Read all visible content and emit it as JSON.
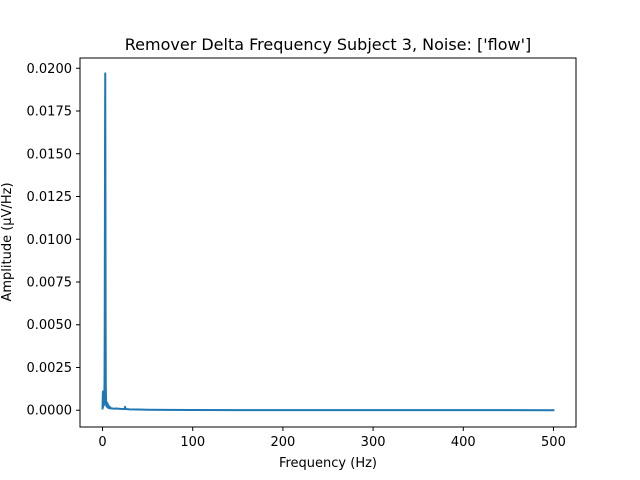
{
  "chart_data": {
    "type": "line",
    "title": "Remover Delta Frequency Subject 3, Noise: ['flow']",
    "xlabel": "Frequency (Hz)",
    "ylabel": "Amplitude (μV/Hz)",
    "xlim": [
      -25,
      525
    ],
    "ylim": [
      -0.00098,
      0.0206
    ],
    "x_ticks": [
      0,
      100,
      200,
      300,
      400,
      500
    ],
    "y_ticks": [
      0.0,
      0.0025,
      0.005,
      0.0075,
      0.01,
      0.0125,
      0.015,
      0.0175,
      0.02
    ],
    "x_tick_labels": [
      "0",
      "100",
      "200",
      "300",
      "400",
      "500"
    ],
    "y_tick_labels": [
      "0.0000",
      "0.0025",
      "0.0050",
      "0.0075",
      "0.0100",
      "0.0125",
      "0.0150",
      "0.0175",
      "0.0200"
    ],
    "grid": false,
    "legend": "none",
    "series": [
      {
        "color": "#1f77b4",
        "x": [
          0,
          0.3,
          0.5,
          0.7,
          1.0,
          1.3,
          1.6,
          2.0,
          2.2,
          2.4,
          2.6,
          2.8,
          3.0,
          3.2,
          3.4,
          3.6,
          3.9,
          4.2,
          4.5,
          5.0,
          5.5,
          6.0,
          6.5,
          7.0,
          8.0,
          9.0,
          10.0,
          12.0,
          15.0,
          20.0,
          24.5,
          25.0,
          25.5,
          30.0,
          40.0,
          50.0,
          70.0,
          100.0,
          150.0,
          200.0,
          300.0,
          400.0,
          500.0
        ],
        "y": [
          0.0001,
          0.0009,
          0.0011,
          0.0002,
          0.0005,
          0.0009,
          0.0003,
          0.0006,
          0.0017,
          0.0045,
          0.0105,
          0.0165,
          0.0197,
          0.013,
          0.0055,
          0.0015,
          0.0004,
          0.00025,
          0.0005,
          0.0002,
          0.0004,
          0.00015,
          0.0003,
          0.00012,
          0.0002,
          0.0001,
          0.00012,
          9e-05,
          0.0001,
          8e-05,
          7e-05,
          0.0002,
          7e-05,
          5e-05,
          4e-05,
          3e-05,
          2e-05,
          1.5e-05,
          1e-05,
          8e-06,
          6e-06,
          4e-06,
          3e-06
        ]
      }
    ]
  }
}
